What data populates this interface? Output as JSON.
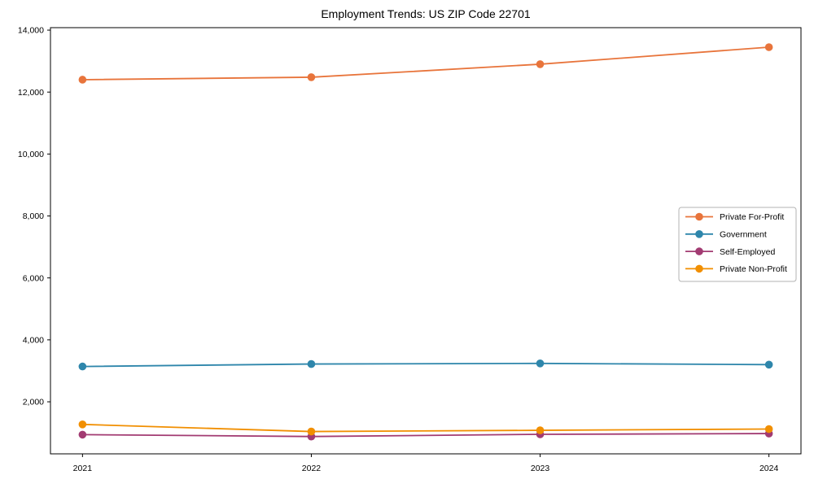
{
  "chart_data": {
    "type": "line",
    "title": "Employment Trends: US ZIP Code 22701",
    "xlabel": "",
    "ylabel": "",
    "x": [
      2021,
      2022,
      2023,
      2024
    ],
    "x_tick_labels": [
      "2021",
      "2022",
      "2023",
      "2024"
    ],
    "yticks": [
      2000,
      4000,
      6000,
      8000,
      10000,
      12000,
      14000
    ],
    "ytick_labels": [
      "2,000",
      "4,000",
      "6,000",
      "8,000",
      "10,000",
      "12,000",
      "14,000"
    ],
    "ylim": [
      320,
      14080
    ],
    "xlim": [
      2020.86,
      2024.14
    ],
    "grid": false,
    "legend_position": "center right",
    "series": [
      {
        "name": "Private For-Profit",
        "color": "#E8743B",
        "values": [
          12400,
          12480,
          12900,
          13450
        ]
      },
      {
        "name": "Government",
        "color": "#2E86AB",
        "values": [
          3140,
          3220,
          3240,
          3200
        ]
      },
      {
        "name": "Self-Employed",
        "color": "#A23B72",
        "values": [
          940,
          880,
          950,
          975
        ]
      },
      {
        "name": "Private Non-Profit",
        "color": "#F18F01",
        "values": [
          1270,
          1040,
          1080,
          1120
        ]
      }
    ]
  },
  "colors": {
    "background": "#ffffff",
    "axis": "#000000",
    "tick_label": "#000000",
    "legend_border": "#b3b3b3",
    "legend_background": "#ffffff"
  }
}
